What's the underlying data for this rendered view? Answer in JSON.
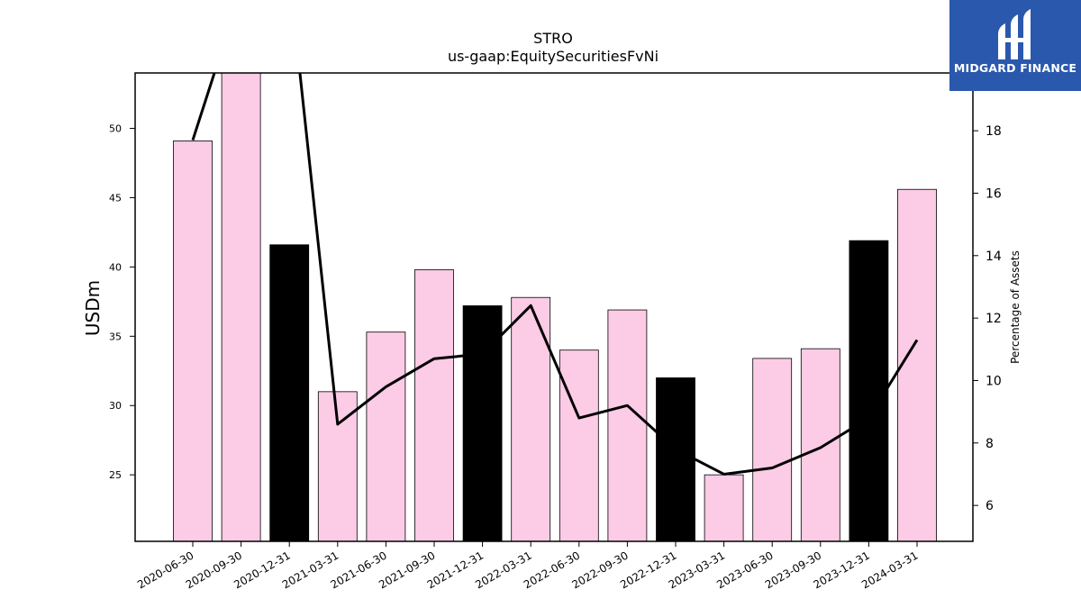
{
  "brand": {
    "name": "MIDGARD FINANCE",
    "color": "#2a58ad",
    "icon": "midgard-logo-icon"
  },
  "chart_data": {
    "type": "bar",
    "title": "STRO",
    "subtitle": "us-gaap:EquitySecuritiesFvNi",
    "ylabel": "USDm",
    "y2label": "Percentage of Assets",
    "ylim": [
      20.2,
      54.0
    ],
    "y2lim": [
      4.85,
      19.85
    ],
    "yticks": [
      25,
      30,
      35,
      40,
      45,
      50
    ],
    "y2ticks": [
      6,
      8,
      10,
      12,
      14,
      16,
      18
    ],
    "grid": false,
    "legend": "none",
    "categories": [
      "2020-06-30",
      "2020-09-30",
      "2020-12-31",
      "2021-03-31",
      "2021-06-30",
      "2021-09-30",
      "2021-12-31",
      "2022-03-31",
      "2022-06-30",
      "2022-09-30",
      "2022-12-31",
      "2023-03-31",
      "2023-06-30",
      "2023-09-30",
      "2023-12-31",
      "2024-03-31"
    ],
    "series": [
      {
        "kind": "bar",
        "axis": "left",
        "values": [
          49.1,
          54.5,
          41.6,
          31.0,
          35.3,
          39.8,
          37.2,
          37.8,
          34.0,
          36.9,
          32.0,
          25.0,
          33.4,
          34.1,
          41.9,
          45.6
        ],
        "colors": [
          "#fccbe6",
          "#fccbe6",
          "#000000",
          "#fccbe6",
          "#fccbe6",
          "#fccbe6",
          "#000000",
          "#fccbe6",
          "#fccbe6",
          "#fccbe6",
          "#000000",
          "#fccbe6",
          "#fccbe6",
          "#fccbe6",
          "#000000",
          "#fccbe6"
        ]
      },
      {
        "kind": "line",
        "axis": "right",
        "color": "#000000",
        "values": [
          17.7,
          22.5,
          23.0,
          8.6,
          9.8,
          10.7,
          10.85,
          12.4,
          8.8,
          9.2,
          7.8,
          7.0,
          7.2,
          7.85,
          8.8,
          11.3
        ]
      }
    ]
  }
}
